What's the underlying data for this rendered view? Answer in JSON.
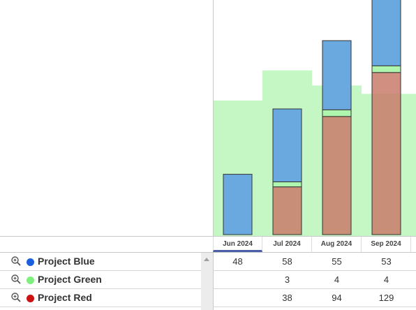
{
  "chart_data": {
    "type": "bar",
    "stacked": true,
    "categories": [
      "Jun 2024",
      "Jul 2024",
      "Aug 2024",
      "Sep 2024"
    ],
    "selected_category": "Jun 2024",
    "series": [
      {
        "name": "Project Blue",
        "color": "#1a5fe0",
        "bar_fill": "#6aa8e0",
        "values": [
          48,
          58,
          55,
          53
        ]
      },
      {
        "name": "Project Green",
        "color": "#7ef07e",
        "bar_fill": "#aef5ae",
        "values": [
          null,
          3,
          4,
          4
        ]
      },
      {
        "name": "Project Red",
        "color": "#cc1111",
        "bar_fill": "#c97b6b",
        "values": [
          null,
          38,
          94,
          129
        ]
      }
    ],
    "background_area": {
      "color": "#c4f7c4",
      "levels": [
        80,
        98,
        89,
        84
      ]
    },
    "grid": false,
    "legend_placement": "bottom-table"
  },
  "table": {
    "columns": [
      "Jun 2024",
      "Jul 2024",
      "Aug 2024",
      "Sep 2024"
    ],
    "rows": [
      {
        "label": "Project Blue",
        "dot_color": "#1a5fe0",
        "cells": [
          "48",
          "58",
          "55",
          "53"
        ]
      },
      {
        "label": "Project Green",
        "dot_color": "#7ef07e",
        "cells": [
          "",
          "3",
          "4",
          "4"
        ]
      },
      {
        "label": "Project Red",
        "dot_color": "#cc1111",
        "cells": [
          "",
          "38",
          "94",
          "129"
        ]
      }
    ]
  },
  "icons": {
    "zoom": "zoom-in-icon",
    "scroll_up": "scroll-up-arrow-icon"
  }
}
